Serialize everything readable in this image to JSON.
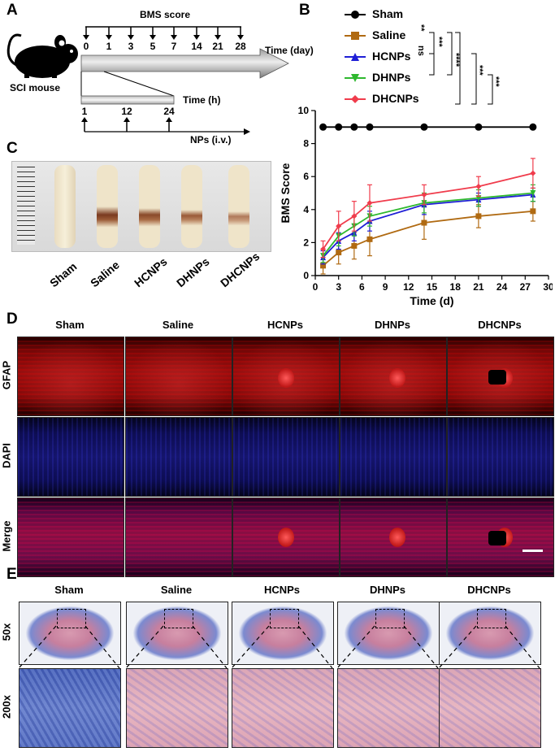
{
  "panels": {
    "a": "A",
    "b": "B",
    "c": "C",
    "d": "D",
    "e": "E"
  },
  "panel_a": {
    "bms_score": "BMS score",
    "time_day": "Time (day)",
    "day_ticks": [
      "0",
      "1",
      "3",
      "5",
      "7",
      "14",
      "21",
      "28"
    ],
    "mouse_label": "SCI mouse",
    "time_h": "Time (h)",
    "hour_ticks": [
      "1",
      "12",
      "24"
    ],
    "nps": "NPs (i.v.)"
  },
  "panel_b": {
    "legend": [
      {
        "name": "Sham",
        "color": "#000000"
      },
      {
        "name": "Saline",
        "color": "#b06a12"
      },
      {
        "name": "HCNPs",
        "color": "#1f1fd6"
      },
      {
        "name": "DHNPs",
        "color": "#2eb82e"
      },
      {
        "name": "DHCNPs",
        "color": "#f03c4c"
      }
    ],
    "sig": [
      "**",
      "ns",
      "***",
      "****",
      "***",
      "***"
    ]
  },
  "chart_data": {
    "type": "line",
    "title": "",
    "xlabel": "Time (d)",
    "ylabel": "BMS Score",
    "xlim": [
      0,
      30
    ],
    "ylim": [
      0,
      10
    ],
    "xticks": [
      "0",
      "3",
      "6",
      "9",
      "12",
      "15",
      "18",
      "21",
      "24",
      "27",
      "30"
    ],
    "yticks": [
      "0",
      "2",
      "4",
      "6",
      "8",
      "10"
    ],
    "x": [
      1,
      3,
      5,
      7,
      14,
      21,
      28
    ],
    "series": [
      {
        "name": "Sham",
        "color": "#000000",
        "values": [
          9,
          9,
          9,
          9,
          9,
          9,
          9
        ],
        "err": [
          0,
          0,
          0,
          0,
          0,
          0,
          0
        ]
      },
      {
        "name": "Saline",
        "color": "#b06a12",
        "values": [
          0.6,
          1.4,
          1.8,
          2.2,
          3.2,
          3.6,
          3.9
        ],
        "err": [
          0.5,
          0.7,
          0.8,
          1.0,
          1.0,
          0.7,
          0.6
        ]
      },
      {
        "name": "HCNPs",
        "color": "#1f1fd6",
        "values": [
          1.1,
          2.1,
          2.6,
          3.3,
          4.3,
          4.6,
          4.9
        ],
        "err": [
          0.4,
          0.5,
          0.5,
          0.6,
          0.6,
          0.4,
          0.4
        ]
      },
      {
        "name": "DHNPs",
        "color": "#2eb82e",
        "values": [
          1.2,
          2.4,
          3.0,
          3.6,
          4.4,
          4.7,
          5.0
        ],
        "err": [
          0.4,
          0.6,
          0.6,
          0.6,
          0.6,
          0.5,
          0.5
        ]
      },
      {
        "name": "DHCNPs",
        "color": "#f03c4c",
        "values": [
          1.6,
          3.0,
          3.6,
          4.4,
          4.9,
          5.4,
          6.2
        ],
        "err": [
          0.5,
          0.9,
          0.9,
          1.1,
          0.6,
          0.6,
          0.9
        ]
      }
    ]
  },
  "panel_c": {
    "samples": [
      "Sham",
      "Saline",
      "HCNPs",
      "DHNPs",
      "DHCNPs"
    ]
  },
  "panel_d": {
    "columns": [
      "Sham",
      "Saline",
      "HCNPs",
      "DHNPs",
      "DHCNPs"
    ],
    "rows": [
      "GFAP",
      "DAPI",
      "Merge"
    ]
  },
  "panel_e": {
    "columns": [
      "Sham",
      "Saline",
      "HCNPs",
      "DHNPs",
      "DHCNPs"
    ],
    "rows": [
      "50x",
      "200x"
    ]
  }
}
